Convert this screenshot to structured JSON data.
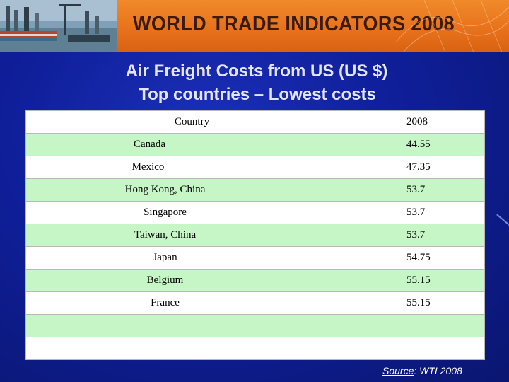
{
  "banner": {
    "title": "WORLD TRADE INDICATORS 2008"
  },
  "slide": {
    "title_line_1": "Air Freight Costs from US  (US $)",
    "title_line_2": "Top countries – Lowest costs"
  },
  "table": {
    "headers": [
      "Country",
      "2008"
    ],
    "rows": [
      {
        "country": "Canada",
        "value": "44.55"
      },
      {
        "country": "Mexico",
        "value": "47.35"
      },
      {
        "country": "Hong Kong, China",
        "value": "53.7"
      },
      {
        "country": "Singapore",
        "value": "53.7"
      },
      {
        "country": "Taiwan, China",
        "value": "53.7"
      },
      {
        "country": "Japan",
        "value": "54.75"
      },
      {
        "country": "Belgium",
        "value": "55.15"
      },
      {
        "country": "France",
        "value": "55.15"
      },
      {
        "country": "",
        "value": ""
      },
      {
        "country": "",
        "value": ""
      }
    ]
  },
  "source": {
    "label": "Source",
    "text": ": WTI 2008"
  },
  "colors": {
    "background": "#0f1f9a",
    "banner": "#e8721c",
    "row_highlight": "#c6f6c6"
  }
}
